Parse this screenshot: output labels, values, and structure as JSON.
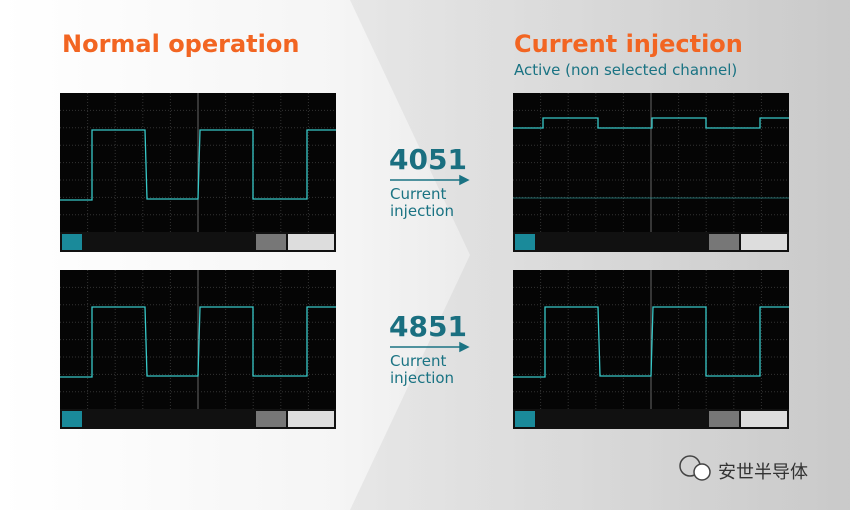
{
  "left_heading": "Normal operation",
  "right_heading": "Current injection",
  "right_subheading": "Active (non selected channel)",
  "devices": [
    {
      "part": "4051",
      "label": "Current injection"
    },
    {
      "part": "4851",
      "label": "Current injection"
    }
  ],
  "watermark": "安世半导体"
}
